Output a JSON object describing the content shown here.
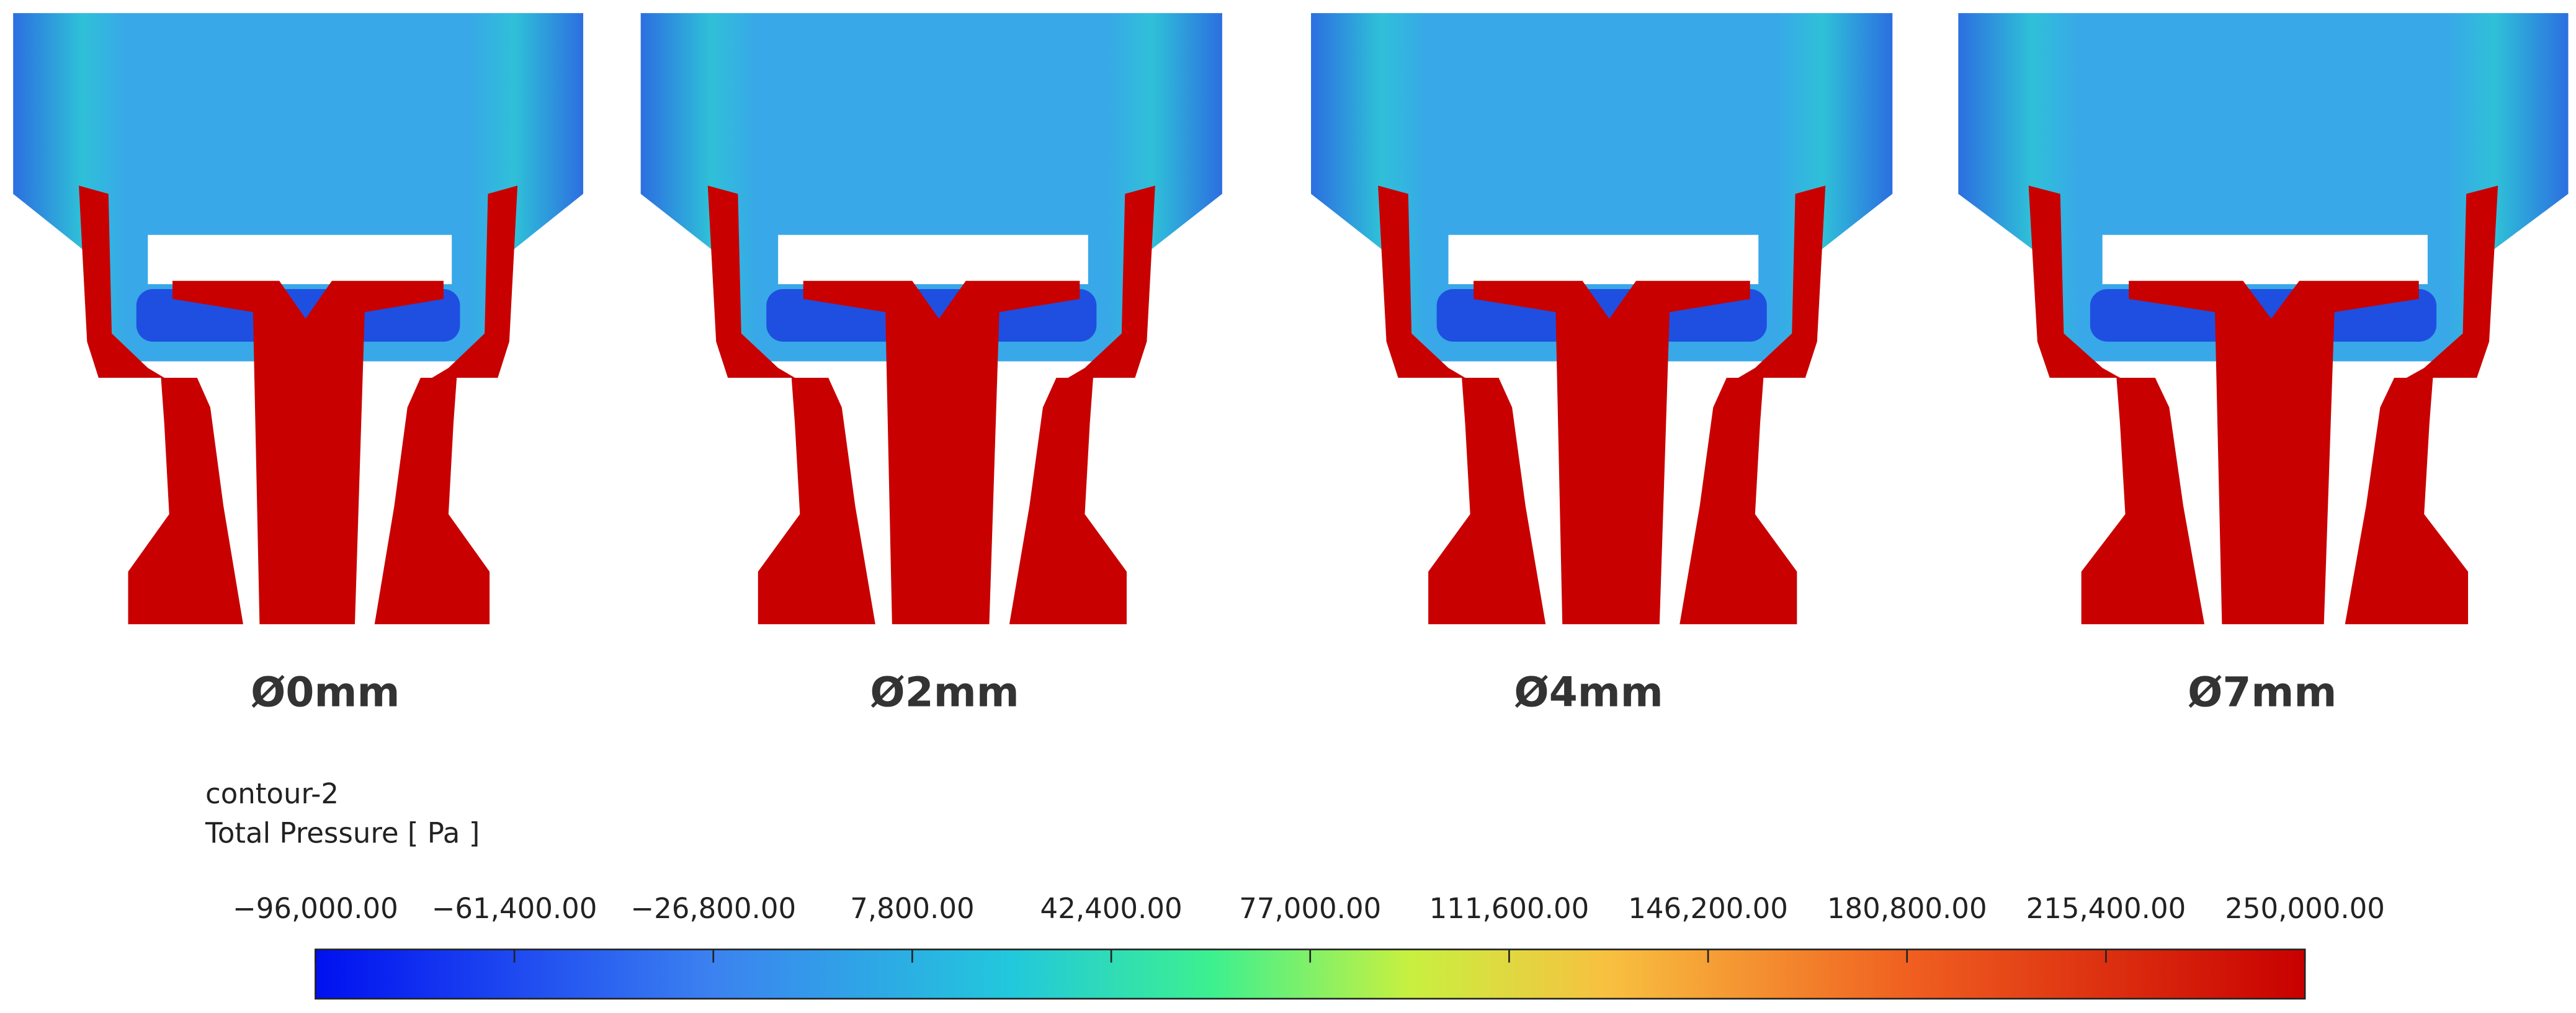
{
  "panels": [
    {
      "label": "Ø0mm"
    },
    {
      "label": "Ø2mm"
    },
    {
      "label": "Ø4mm"
    },
    {
      "label": "Ø7mm"
    }
  ],
  "legend": {
    "name": "contour-2",
    "title": "Total Pressure [ Pa ]",
    "range": [
      -96000,
      250000
    ],
    "ticks": [
      {
        "value": -96000,
        "label": "−96,000.00"
      },
      {
        "value": -61400,
        "label": "−61,400.00"
      },
      {
        "value": -26800,
        "label": "−26,800.00"
      },
      {
        "value": 7800,
        "label": "7,800.00"
      },
      {
        "value": 42400,
        "label": "42,400.00"
      },
      {
        "value": 77000,
        "label": "77,000.00"
      },
      {
        "value": 111600,
        "label": "111,600.00"
      },
      {
        "value": 146200,
        "label": "146,200.00"
      },
      {
        "value": 180800,
        "label": "180,800.00"
      },
      {
        "value": 215400,
        "label": "215,400.00"
      },
      {
        "value": 250000,
        "label": "250,000.00"
      }
    ]
  }
}
